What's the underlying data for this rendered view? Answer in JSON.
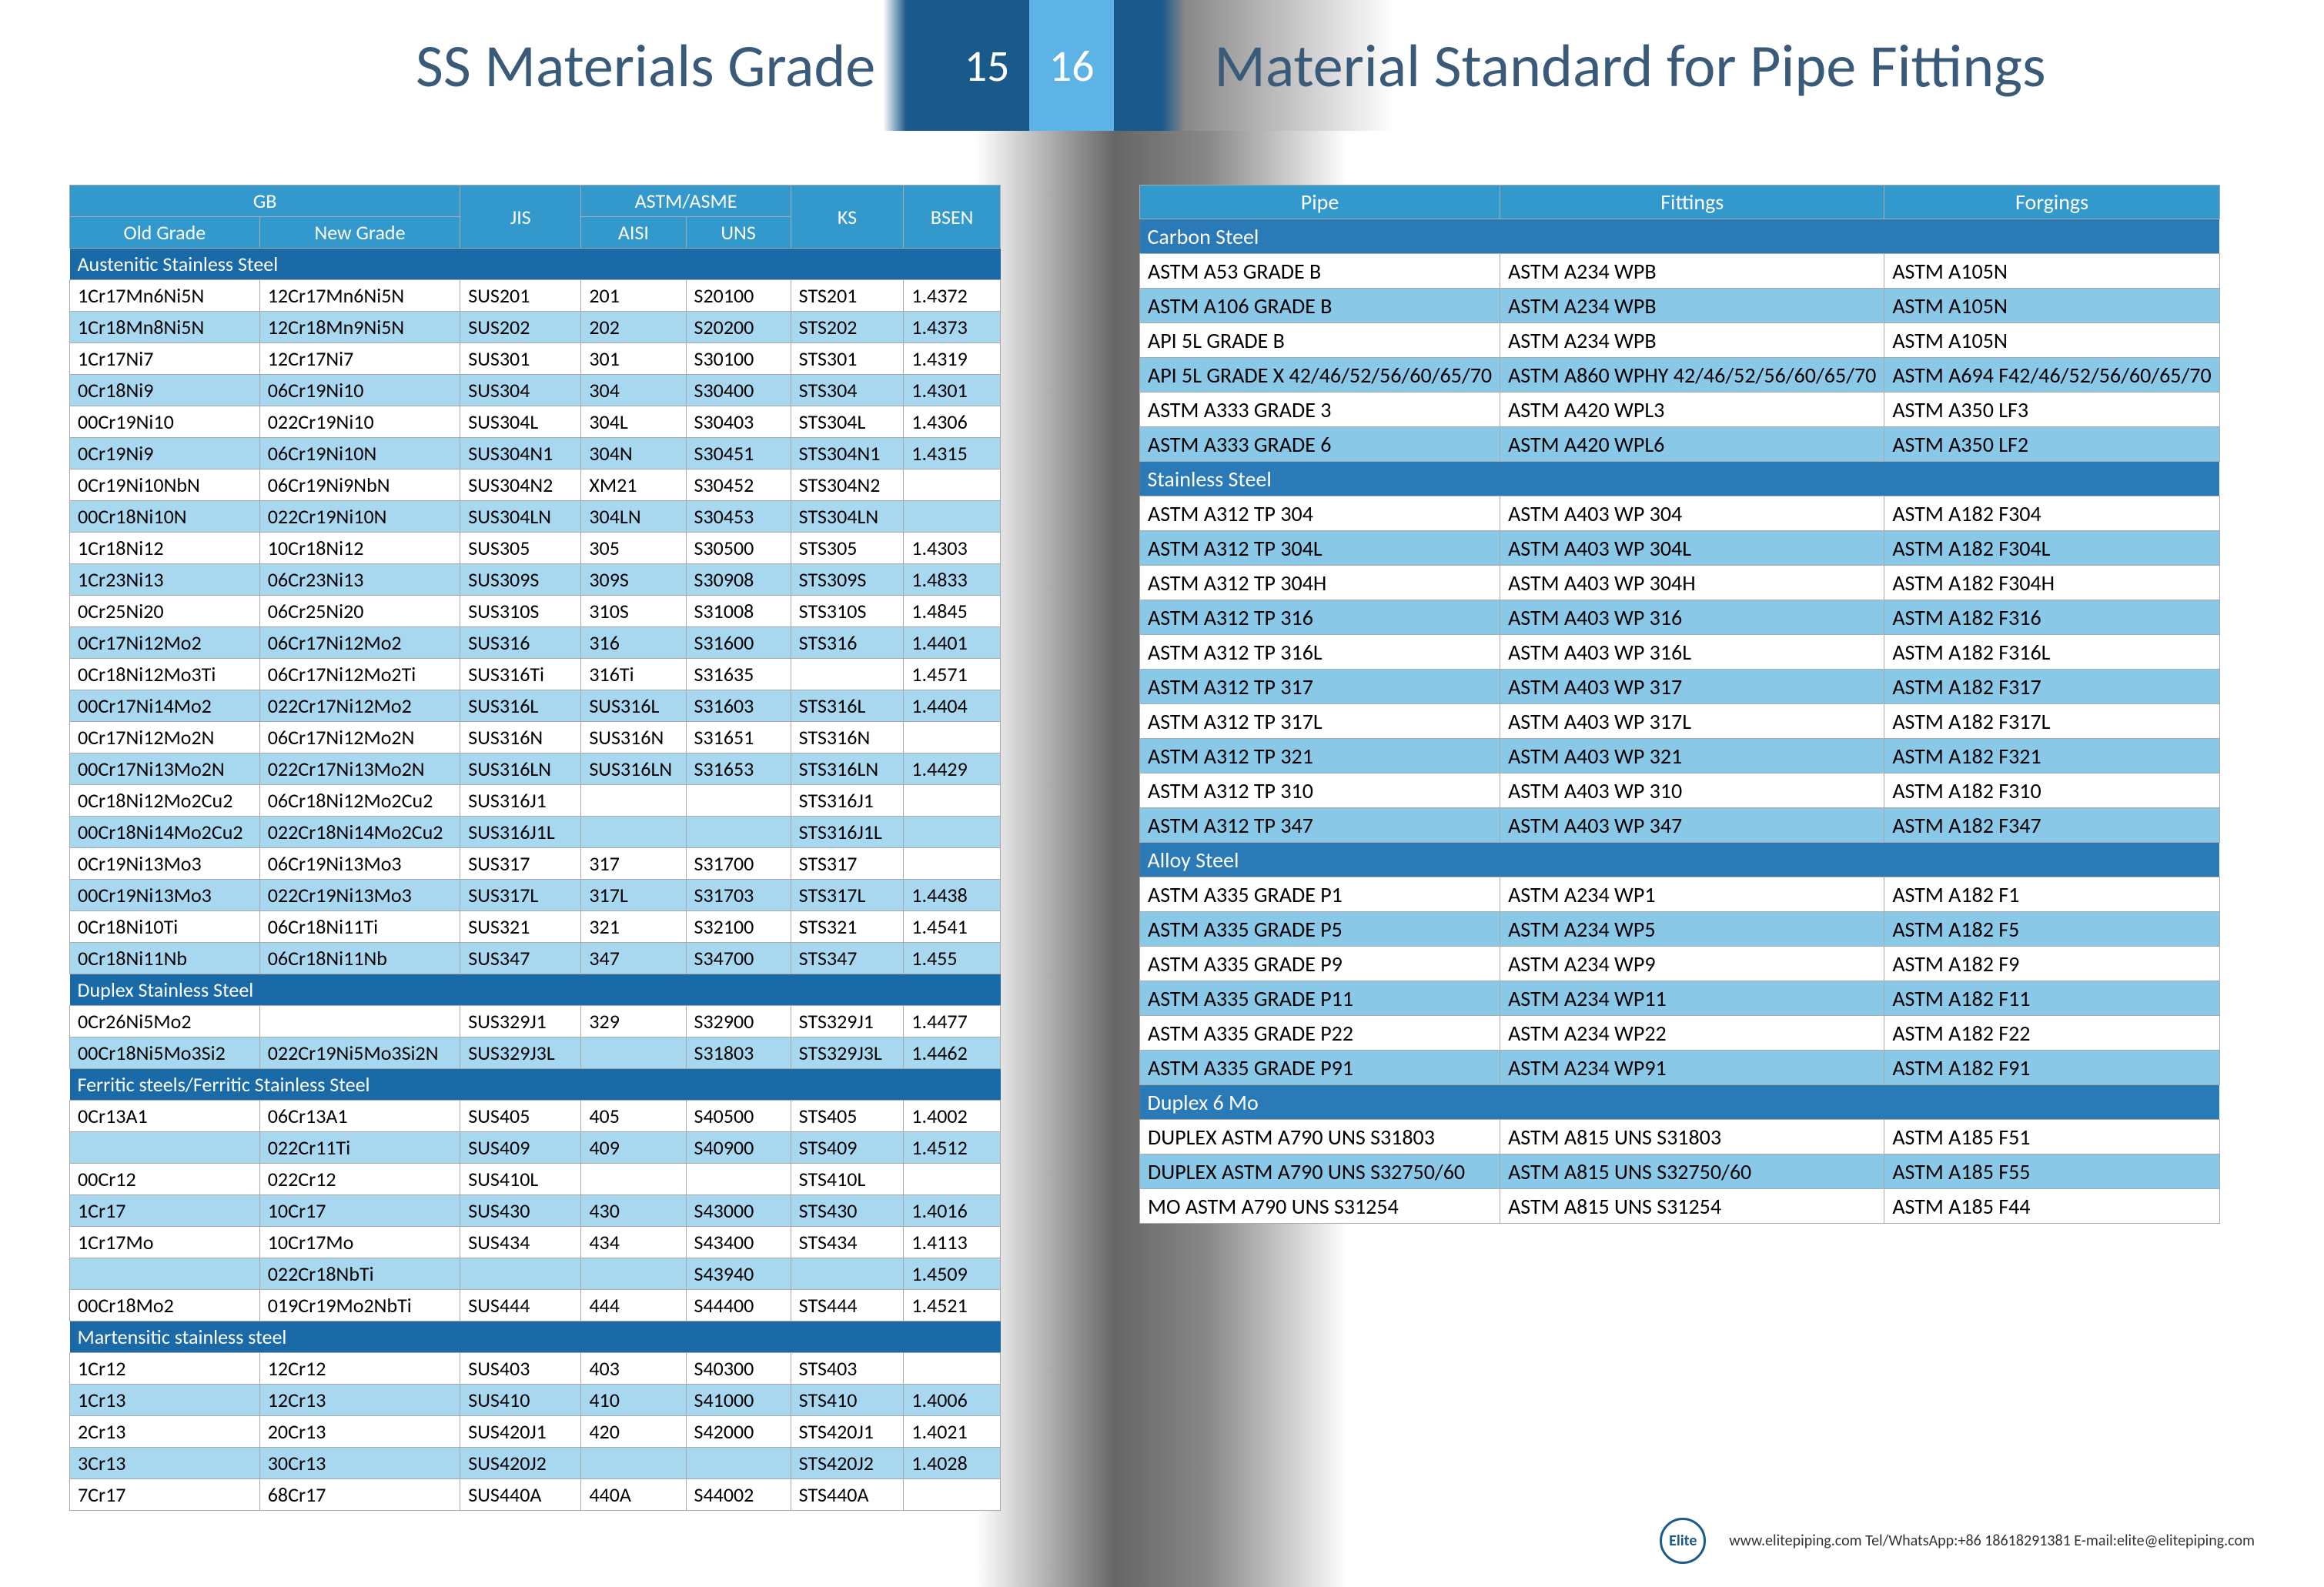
{
  "header": {
    "title_left": "SS Materials Grade",
    "page_left": "15",
    "page_right": "16",
    "title_right": "Material Standard for Pipe Fittings"
  },
  "left_table": {
    "headers": {
      "gb": "GB",
      "jis": "JIS",
      "astm": "ASTM/ASME",
      "ks": "KS",
      "bsen": "BSEN",
      "old": "Old  Grade",
      "new": "New  Grade",
      "aisi": "AISI",
      "uns": "UNS"
    },
    "col_widths": [
      "200px",
      "230px",
      "150px",
      "130px",
      "130px",
      "140px",
      "120px"
    ],
    "sections": [
      {
        "title": "Austenitic  Stainless    Steel",
        "rows": [
          [
            "1Cr17Mn6Ni5N",
            "12Cr17Mn6Ni5N",
            "SUS201",
            "201",
            "S20100",
            "STS201",
            "1.4372"
          ],
          [
            "1Cr18Mn8Ni5N",
            "12Cr18Mn9Ni5N",
            "SUS202",
            "202",
            "S20200",
            "STS202",
            "1.4373"
          ],
          [
            "1Cr17Ni7",
            "12Cr17Ni7",
            "SUS301",
            "301",
            "S30100",
            "STS301",
            "1.4319"
          ],
          [
            "0Cr18Ni9",
            "06Cr19Ni10",
            "SUS304",
            "304",
            "S30400",
            "STS304",
            "1.4301"
          ],
          [
            "00Cr19Ni10",
            "022Cr19Ni10",
            "SUS304L",
            "304L",
            "S30403",
            "STS304L",
            "1.4306"
          ],
          [
            "0Cr19Ni9",
            "06Cr19Ni10N",
            "SUS304N1",
            "304N",
            "S30451",
            "STS304N1",
            "1.4315"
          ],
          [
            "0Cr19Ni10NbN",
            "06Cr19Ni9NbN",
            "SUS304N2",
            "XM21",
            "S30452",
            "STS304N2",
            ""
          ],
          [
            "00Cr18Ni10N",
            "022Cr19Ni10N",
            "SUS304LN",
            "304LN",
            "S30453",
            "STS304LN",
            ""
          ],
          [
            "1Cr18Ni12",
            "10Cr18Ni12",
            "SUS305",
            "305",
            "S30500",
            "STS305",
            "1.4303"
          ],
          [
            "1Cr23Ni13",
            "06Cr23Ni13",
            "SUS309S",
            "309S",
            "S30908",
            "STS309S",
            "1.4833"
          ],
          [
            "0Cr25Ni20",
            "06Cr25Ni20",
            "SUS310S",
            "310S",
            "S31008",
            "STS310S",
            "1.4845"
          ],
          [
            "0Cr17Ni12Mo2",
            "06Cr17Ni12Mo2",
            "SUS316",
            "316",
            "S31600",
            "STS316",
            "1.4401"
          ],
          [
            "0Cr18Ni12Mo3Ti",
            "06Cr17Ni12Mo2Ti",
            "SUS316Ti",
            "316Ti",
            "S31635",
            "",
            "1.4571"
          ],
          [
            "00Cr17Ni14Mo2",
            "022Cr17Ni12Mo2",
            "SUS316L",
            "SUS316L",
            "S31603",
            "STS316L",
            "1.4404"
          ],
          [
            "0Cr17Ni12Mo2N",
            "06Cr17Ni12Mo2N",
            "SUS316N",
            "SUS316N",
            "S31651",
            "STS316N",
            ""
          ],
          [
            "00Cr17Ni13Mo2N",
            "022Cr17Ni13Mo2N",
            "SUS316LN",
            "SUS316LN",
            "S31653",
            "STS316LN",
            "1.4429"
          ],
          [
            "0Cr18Ni12Mo2Cu2",
            "06Cr18Ni12Mo2Cu2",
            "SUS316J1",
            "",
            "",
            "STS316J1",
            ""
          ],
          [
            "00Cr18Ni14Mo2Cu2",
            "022Cr18Ni14Mo2Cu2",
            "SUS316J1L",
            "",
            "",
            "STS316J1L",
            ""
          ],
          [
            "0Cr19Ni13Mo3",
            "06Cr19Ni13Mo3",
            "SUS317",
            "317",
            "S31700",
            "STS317",
            ""
          ],
          [
            "00Cr19Ni13Mo3",
            "022Cr19Ni13Mo3",
            "SUS317L",
            "317L",
            "S31703",
            "STS317L",
            "1.4438"
          ],
          [
            "0Cr18Ni10Ti",
            "06Cr18Ni11Ti",
            "SUS321",
            "321",
            "S32100",
            "STS321",
            "1.4541"
          ],
          [
            "0Cr18Ni11Nb",
            "06Cr18Ni11Nb",
            "SUS347",
            "347",
            "S34700",
            "STS347",
            "1.455"
          ]
        ]
      },
      {
        "title": "Duplex  Stainless    Steel",
        "rows": [
          [
            "0Cr26Ni5Mo2",
            "",
            "SUS329J1",
            "329",
            "S32900",
            "STS329J1",
            "1.4477"
          ],
          [
            "00Cr18Ni5Mo3Si2",
            "022Cr19Ni5Mo3Si2N",
            "SUS329J3L",
            "",
            "S31803",
            "STS329J3L",
            "1.4462"
          ]
        ]
      },
      {
        "title": "Ferritic  steels/Ferritic    Stainless    Steel",
        "rows": [
          [
            "0Cr13A1",
            "06Cr13A1",
            "SUS405",
            "405",
            "S40500",
            "STS405",
            "1.4002"
          ],
          [
            "",
            "022Cr11Ti",
            "SUS409",
            "409",
            "S40900",
            "STS409",
            "1.4512"
          ],
          [
            "00Cr12",
            "022Cr12",
            "SUS410L",
            "",
            "",
            "STS410L",
            ""
          ],
          [
            "1Cr17",
            "10Cr17",
            "SUS430",
            "430",
            "S43000",
            "STS430",
            "1.4016"
          ],
          [
            "1Cr17Mo",
            "10Cr17Mo",
            "SUS434",
            "434",
            "S43400",
            "STS434",
            "1.4113"
          ],
          [
            "",
            "022Cr18NbTi",
            "",
            "",
            "S43940",
            "",
            "1.4509"
          ],
          [
            "00Cr18Mo2",
            "019Cr19Mo2NbTi",
            "SUS444",
            "444",
            "S44400",
            "STS444",
            "1.4521"
          ]
        ]
      },
      {
        "title": "Martensitic  stainless    steel",
        "rows": [
          [
            "1Cr12",
            "12Cr12",
            "SUS403",
            "403",
            "S40300",
            "STS403",
            ""
          ],
          [
            "1Cr13",
            "12Cr13",
            "SUS410",
            "410",
            "S41000",
            "STS410",
            "1.4006"
          ],
          [
            "2Cr13",
            "20Cr13",
            "SUS420J1",
            "420",
            "S42000",
            "STS420J1",
            "1.4021"
          ],
          [
            "3Cr13",
            "30Cr13",
            "SUS420J2",
            "",
            "",
            "STS420J2",
            "1.4028"
          ],
          [
            "7Cr17",
            "68Cr17",
            "SUS440A",
            "440A",
            "S44002",
            "STS440A",
            ""
          ]
        ]
      }
    ]
  },
  "right_table": {
    "headers": {
      "pipe": "Pipe",
      "fittings": "Fittings",
      "forgings": "Forgings"
    },
    "col_widths": [
      "450px",
      "480px",
      "420px"
    ],
    "sections": [
      {
        "title": "Carbon   Steel",
        "rows": [
          [
            "ASTM A53 GRADE B",
            "ASTM A234 WPB",
            "ASTM A105N"
          ],
          [
            "ASTM A106 GRADE B",
            "ASTM A234 WPB",
            "ASTM A105N"
          ],
          [
            "API 5L GRADE B",
            "ASTM A234 WPB",
            "ASTM A105N"
          ],
          [
            "API 5L GRADE X 42/46/52/56/60/65/70",
            "ASTM A860 WPHY 42/46/52/56/60/65/70",
            "ASTM A694 F42/46/52/56/60/65/70"
          ],
          [
            "ASTM A333 GRADE 3",
            "ASTM A420 WPL3",
            "ASTM A350 LF3"
          ],
          [
            "ASTM A333 GRADE 6",
            "ASTM A420 WPL6",
            "ASTM A350 LF2"
          ]
        ]
      },
      {
        "title": "Stainless    Steel",
        "rows": [
          [
            "ASTM A312 TP 304",
            "ASTM A403 WP 304",
            "ASTM A182 F304"
          ],
          [
            "ASTM A312 TP 304L",
            "ASTM A403 WP 304L",
            "ASTM A182 F304L"
          ],
          [
            "ASTM A312 TP 304H",
            "ASTM A403 WP 304H",
            "ASTM A182 F304H"
          ],
          [
            "ASTM A312 TP 316",
            "ASTM A403 WP 316",
            "ASTM A182 F316"
          ],
          [
            "ASTM A312 TP 316L",
            "ASTM A403 WP 316L",
            "ASTM A182 F316L"
          ],
          [
            "ASTM A312 TP 317",
            "ASTM A403 WP 317",
            "ASTM A182 F317"
          ],
          [
            "ASTM A312 TP 317L",
            "ASTM A403 WP 317L",
            "ASTM A182 F317L"
          ],
          [
            "ASTM A312 TP 321",
            "ASTM A403 WP 321",
            "ASTM A182 F321"
          ],
          [
            "ASTM A312 TP 310",
            "ASTM A403 WP 310",
            "ASTM A182 F310"
          ],
          [
            "ASTM A312 TP 347",
            "ASTM A403 WP 347",
            "ASTM A182 F347"
          ]
        ]
      },
      {
        "title": "Alloy  Steel",
        "rows": [
          [
            "ASTM A335 GRADE P1",
            "ASTM A234 WP1",
            "ASTM A182 F1"
          ],
          [
            "ASTM A335 GRADE P5",
            "ASTM A234 WP5",
            "ASTM A182 F5"
          ],
          [
            "ASTM A335 GRADE P9",
            "ASTM A234 WP9",
            "ASTM A182 F9"
          ],
          [
            "ASTM A335 GRADE P11",
            "ASTM A234 WP11",
            "ASTM A182 F11"
          ],
          [
            "ASTM A335 GRADE P22",
            "ASTM A234 WP22",
            "ASTM A182 F22"
          ],
          [
            "ASTM A335 GRADE P91",
            "ASTM A234 WP91",
            "ASTM A182 F91"
          ]
        ]
      },
      {
        "title": "Duplex   6 Mo",
        "rows": [
          [
            "DUPLEX ASTM A790 UNS S31803",
            "ASTM A815 UNS S31803",
            "ASTM A185 F51"
          ],
          [
            "DUPLEX ASTM A790 UNS S32750/60",
            "ASTM A815 UNS S32750/60",
            "ASTM A185 F55"
          ],
          [
            "MO ASTM A790 UNS S31254",
            "ASTM A815 UNS S31254",
            "ASTM A185 F44"
          ]
        ]
      }
    ]
  },
  "footer": {
    "logo": "Elite",
    "text": "www.elitepiping.com    Tel/WhatsApp:+86 18618291381    E-mail:elite@elitepiping.com"
  }
}
